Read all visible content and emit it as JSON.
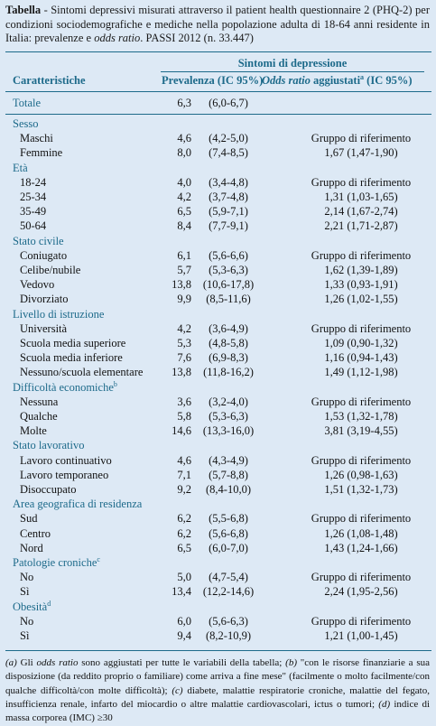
{
  "title": [
    {
      "text": "Tabella",
      "bold": true
    },
    {
      "text": " - Sintomi depressivi misurati attraverso il patient health questionnaire 2 (PHQ-2) per condizioni sociodemografiche e mediche nella popolazione adulta di 18-64 anni residente in Italia: prevalenze e "
    },
    {
      "text": "odds ratio",
      "italic": true
    },
    {
      "text": ". PASSI 2012 (n. 33.447)"
    }
  ],
  "header": {
    "group": "Sintomi di depressione",
    "col1": "Caratteristiche",
    "col2": "Prevalenza (IC 95%)",
    "col3": [
      {
        "text": "Odds ratio",
        "italic": true
      },
      {
        "text": " aggiustati"
      },
      {
        "text": "a",
        "sup": true
      },
      {
        "text": " (IC 95%)"
      }
    ]
  },
  "total": [
    "Totale",
    "6,3",
    "(6,0-6,7)"
  ],
  "groups": [
    {
      "name": "Sesso",
      "rows": [
        [
          "Maschi",
          "4,6",
          "(4,2-5,0)",
          "Gruppo di riferimento"
        ],
        [
          "Femmine",
          "8,0",
          "(7,4-8,5)",
          "1,67 (1,47-1,90)"
        ]
      ]
    },
    {
      "name": "Età",
      "rows": [
        [
          "18-24",
          "4,0",
          "(3,4-4,8)",
          "Gruppo di riferimento"
        ],
        [
          "25-34",
          "4,2",
          "(3,7-4,8)",
          "1,31 (1,03-1,65)"
        ],
        [
          "35-49",
          "6,5",
          "(5,9-7,1)",
          "2,14 (1,67-2,74)"
        ],
        [
          "50-64",
          "8,4",
          "(7,7-9,1)",
          "2,21 (1,71-2,87)"
        ]
      ]
    },
    {
      "name": "Stato civile",
      "rows": [
        [
          "Coniugato",
          "6,1",
          "(5,6-6,6)",
          "Gruppo di riferimento"
        ],
        [
          "Celibe/nubile",
          "5,7",
          "(5,3-6,3)",
          "1,62 (1,39-1,89)"
        ],
        [
          "Vedovo",
          "13,8",
          "(10,6-17,8)",
          "1,33 (0,93-1,91)"
        ],
        [
          "Divorziato",
          "9,9",
          "(8,5-11,6)",
          "1,26 (1,02-1,55)"
        ]
      ]
    },
    {
      "name": "Livello di istruzione",
      "rows": [
        [
          "Università",
          "4,2",
          "(3,6-4,9)",
          "Gruppo di riferimento"
        ],
        [
          "Scuola media superiore",
          "5,3",
          "(4,8-5,8)",
          "1,09 (0,90-1,32)"
        ],
        [
          "Scuola media inferiore",
          "7,6",
          "(6,9-8,3)",
          "1,16 (0,94-1,43)"
        ],
        [
          "Nessuno/scuola elementare",
          "13,8",
          "(11,8-16,2)",
          "1,49 (1,12-1,98)"
        ]
      ]
    },
    {
      "name": "Difficoltà economiche",
      "note": "b",
      "rows": [
        [
          "Nessuna",
          "3,6",
          "(3,2-4,0)",
          "Gruppo di riferimento"
        ],
        [
          "Qualche",
          "5,8",
          "(5,3-6,3)",
          "1,53 (1,32-1,78)"
        ],
        [
          "Molte",
          "14,6",
          "(13,3-16,0)",
          "3,81 (3,19-4,55)"
        ]
      ]
    },
    {
      "name": "Stato lavorativo",
      "rows": [
        [
          "Lavoro continuativo",
          "4,6",
          "(4,3-4,9)",
          "Gruppo di riferimento"
        ],
        [
          "Lavoro temporaneo",
          "7,1",
          "(5,7-8,8)",
          "1,26 (0,98-1,63)"
        ],
        [
          "Disoccupato",
          "9,2",
          "(8,4-10,0)",
          "1,51 (1,32-1,73)"
        ]
      ]
    },
    {
      "name": "Area geografica di residenza",
      "rows": [
        [
          "Sud",
          "6,2",
          "(5,5-6,8)",
          "Gruppo di riferimento"
        ],
        [
          "Centro",
          "6,2",
          "(5,6-6,8)",
          "1,26 (1,08-1,48)"
        ],
        [
          "Nord",
          "6,5",
          "(6,0-7,0)",
          "1,43 (1,24-1,66)"
        ]
      ]
    },
    {
      "name": "Patologie croniche",
      "note": "c",
      "rows": [
        [
          "No",
          "5,0",
          "(4,7-5,4)",
          "Gruppo di riferimento"
        ],
        [
          "Sì",
          "13,4",
          "(12,2-14,6)",
          "2,24 (1,95-2,56)"
        ]
      ]
    },
    {
      "name": "Obesità",
      "note": "d",
      "rows": [
        [
          "No",
          "6,0",
          "(5,6-6,3)",
          "Gruppo di riferimento"
        ],
        [
          "Sì",
          "9,4",
          "(8,2-10,9)",
          "1,21 (1,00-1,45)"
        ]
      ]
    }
  ],
  "footnote": [
    {
      "text": "(a)",
      "italic": true
    },
    {
      "text": " Gli "
    },
    {
      "text": "odds ratio",
      "italic": true
    },
    {
      "text": " sono aggiustati per tutte le variabili della tabella; "
    },
    {
      "text": "(b)",
      "italic": true
    },
    {
      "text": " \"con le risorse finanziarie a sua disposizione (da reddito proprio o familiare) come arriva a fine mese\" (facilmente o molto facilmente/con qualche difficoltà/con molte difficoltà); "
    },
    {
      "text": "(c)",
      "italic": true
    },
    {
      "text": " diabete, malattie respiratorie croniche, malattie del fegato, insufficienza renale, infarto del miocardio o altre malattie cardiovascolari, ictus o tumori; "
    },
    {
      "text": "(d)",
      "italic": true
    },
    {
      "text": " indice di massa corporea (IMC) ≥30"
    }
  ]
}
